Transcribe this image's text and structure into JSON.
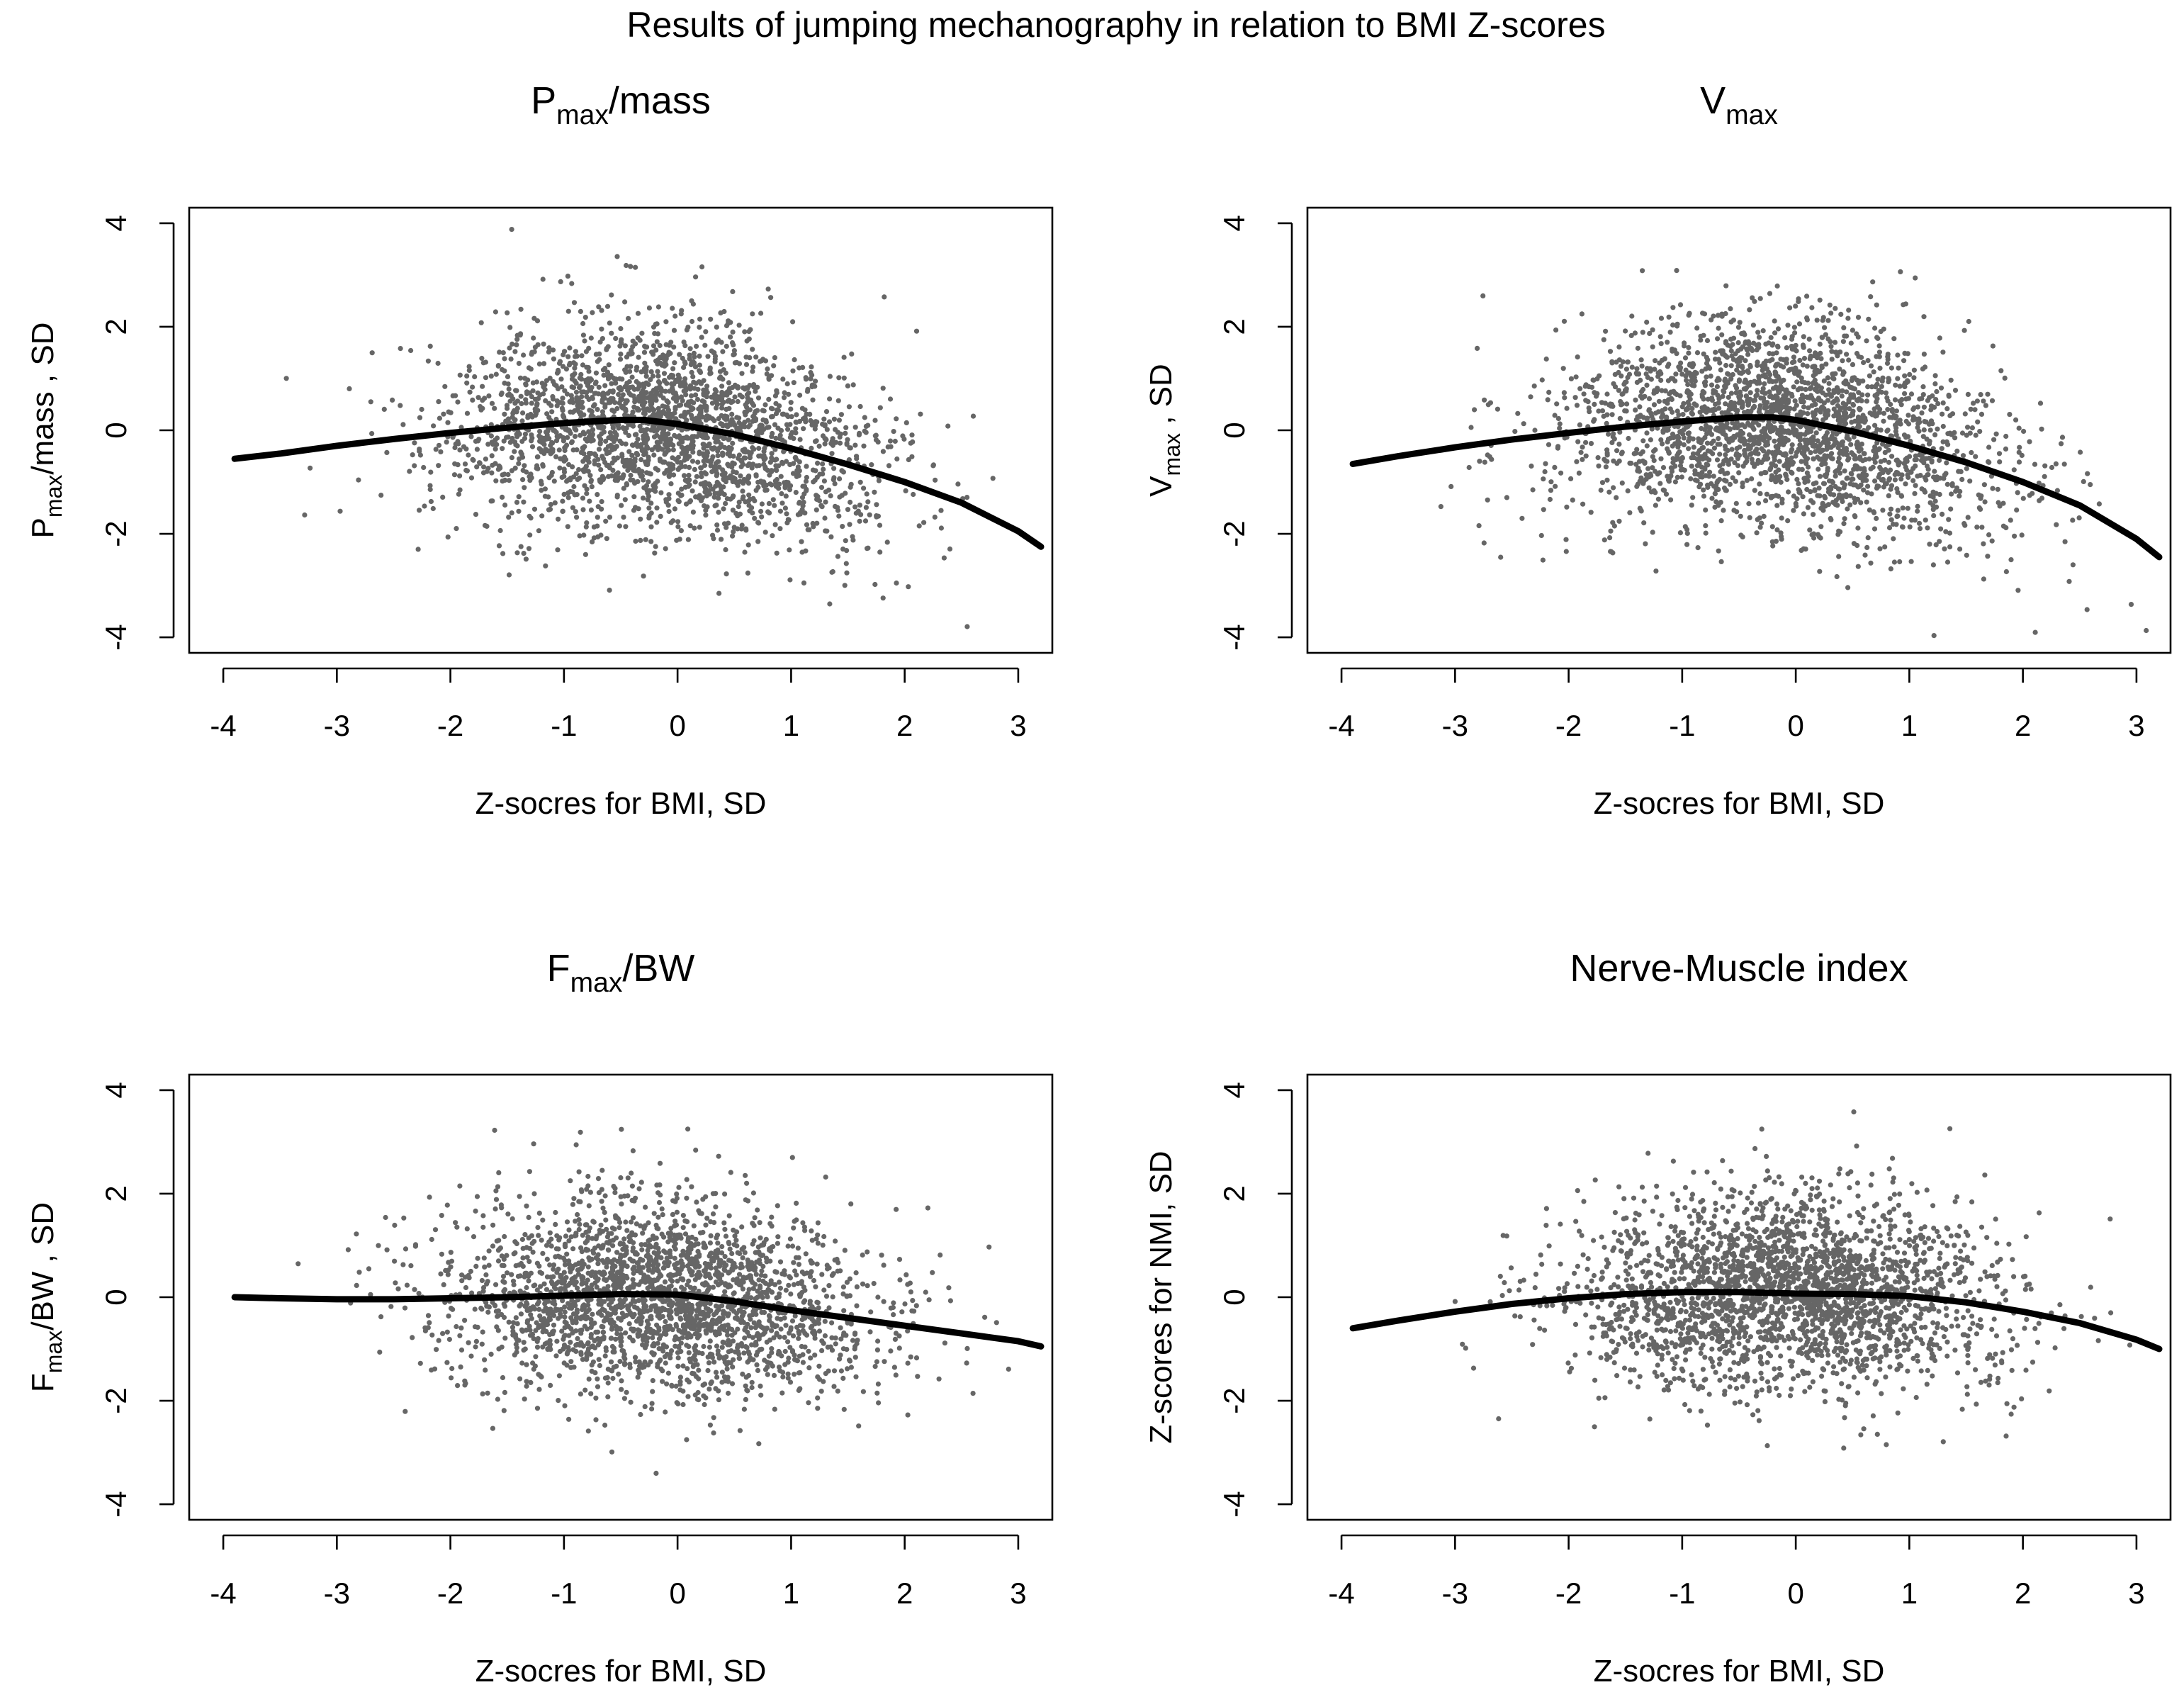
{
  "figure_title": "Results of jumping mechanography in relation to BMI Z-scores",
  "colors": {
    "points": "#666666",
    "fit_line": "#000000",
    "frame": "#000000",
    "background": "#ffffff"
  },
  "chart_data": [
    {
      "type": "scatter",
      "panel": "top-left",
      "title": {
        "main": "P",
        "sub": "max",
        "rest": "/mass"
      },
      "xlabel": "Z-socres for BMI, SD",
      "ylabel": {
        "main": "P",
        "sub": "max",
        "rest": "/mass , SD"
      },
      "xlim": [
        -4.3,
        3.3
      ],
      "ylim": [
        -4.3,
        4.3
      ],
      "xticks": [
        -4,
        -3,
        -2,
        -1,
        0,
        1,
        2,
        3
      ],
      "yticks": [
        -4,
        -2,
        0,
        2,
        4
      ],
      "fit": {
        "name": "smoothed fit",
        "x": [
          -3.9,
          -3.5,
          -3.0,
          -2.5,
          -2.0,
          -1.5,
          -1.0,
          -0.5,
          -0.3,
          0.0,
          0.5,
          1.0,
          1.5,
          2.0,
          2.5,
          3.0,
          3.2
        ],
        "y": [
          -0.55,
          -0.45,
          -0.3,
          -0.17,
          -0.05,
          0.05,
          0.14,
          0.2,
          0.2,
          0.12,
          -0.08,
          -0.35,
          -0.66,
          -1.0,
          -1.4,
          -1.95,
          -2.25
        ]
      },
      "scatter": {
        "n": 2500,
        "x_mean": -0.15,
        "x_sd": 0.95,
        "y_sd": 1.0,
        "seed": 11
      }
    },
    {
      "type": "scatter",
      "panel": "top-right",
      "title": {
        "main": "V",
        "sub": "max",
        "rest": ""
      },
      "xlabel": "Z-socres for BMI, SD",
      "ylabel": {
        "main": "V",
        "sub": "max",
        "rest": " , SD"
      },
      "xlim": [
        -4.3,
        3.3
      ],
      "ylim": [
        -4.3,
        4.3
      ],
      "xticks": [
        -4,
        -3,
        -2,
        -1,
        0,
        1,
        2,
        3
      ],
      "yticks": [
        -4,
        -2,
        0,
        2,
        4
      ],
      "fit": {
        "name": "smoothed fit",
        "x": [
          -3.9,
          -3.5,
          -3.0,
          -2.5,
          -2.0,
          -1.5,
          -1.0,
          -0.5,
          -0.2,
          0.0,
          0.5,
          1.0,
          1.5,
          2.0,
          2.5,
          3.0,
          3.2
        ],
        "y": [
          -0.65,
          -0.5,
          -0.33,
          -0.18,
          -0.05,
          0.07,
          0.17,
          0.25,
          0.25,
          0.2,
          -0.02,
          -0.3,
          -0.62,
          -1.0,
          -1.45,
          -2.1,
          -2.45
        ]
      },
      "scatter": {
        "n": 2500,
        "x_mean": -0.15,
        "x_sd": 0.95,
        "y_sd": 1.0,
        "seed": 23
      }
    },
    {
      "type": "scatter",
      "panel": "bottom-left",
      "title": {
        "main": "F",
        "sub": "max",
        "rest": "/BW"
      },
      "xlabel": "Z-socres for BMI, SD",
      "ylabel": {
        "main": "F",
        "sub": "max",
        "rest": "/BW , SD"
      },
      "xlim": [
        -4.3,
        3.3
      ],
      "ylim": [
        -4.3,
        4.3
      ],
      "xticks": [
        -4,
        -3,
        -2,
        -1,
        0,
        1,
        2,
        3
      ],
      "yticks": [
        -4,
        -2,
        0,
        2,
        4
      ],
      "fit": {
        "name": "smoothed fit",
        "x": [
          -3.9,
          -3.5,
          -3.0,
          -2.5,
          -2.0,
          -1.5,
          -1.0,
          -0.5,
          0.0,
          0.5,
          1.0,
          1.5,
          2.0,
          2.5,
          3.0,
          3.2
        ],
        "y": [
          0.0,
          -0.02,
          -0.04,
          -0.04,
          -0.02,
          0.0,
          0.03,
          0.06,
          0.05,
          -0.08,
          -0.25,
          -0.4,
          -0.55,
          -0.7,
          -0.85,
          -0.95
        ]
      },
      "scatter": {
        "n": 2500,
        "x_mean": -0.15,
        "x_sd": 0.95,
        "y_sd": 0.95,
        "seed": 37
      }
    },
    {
      "type": "scatter",
      "panel": "bottom-right",
      "title": {
        "main": "Nerve-Muscle index",
        "sub": "",
        "rest": ""
      },
      "xlabel": "Z-socres for BMI, SD",
      "ylabel": {
        "main": "Z-scores for NMI, SD",
        "sub": "",
        "rest": ""
      },
      "xlim": [
        -4.3,
        3.3
      ],
      "ylim": [
        -4.3,
        4.3
      ],
      "xticks": [
        -4,
        -3,
        -2,
        -1,
        0,
        1,
        2,
        3
      ],
      "yticks": [
        -4,
        -2,
        0,
        2,
        4
      ],
      "fit": {
        "name": "smoothed fit",
        "x": [
          -3.9,
          -3.5,
          -3.0,
          -2.5,
          -2.0,
          -1.5,
          -1.0,
          -0.5,
          0.0,
          0.5,
          1.0,
          1.5,
          2.0,
          2.5,
          3.0,
          3.2
        ],
        "y": [
          -0.6,
          -0.45,
          -0.28,
          -0.13,
          -0.02,
          0.06,
          0.1,
          0.1,
          0.07,
          0.06,
          0.02,
          -0.1,
          -0.28,
          -0.5,
          -0.82,
          -1.0
        ]
      },
      "scatter": {
        "n": 2500,
        "x_mean": -0.1,
        "x_sd": 0.95,
        "y_sd": 0.95,
        "seed": 51
      }
    }
  ]
}
